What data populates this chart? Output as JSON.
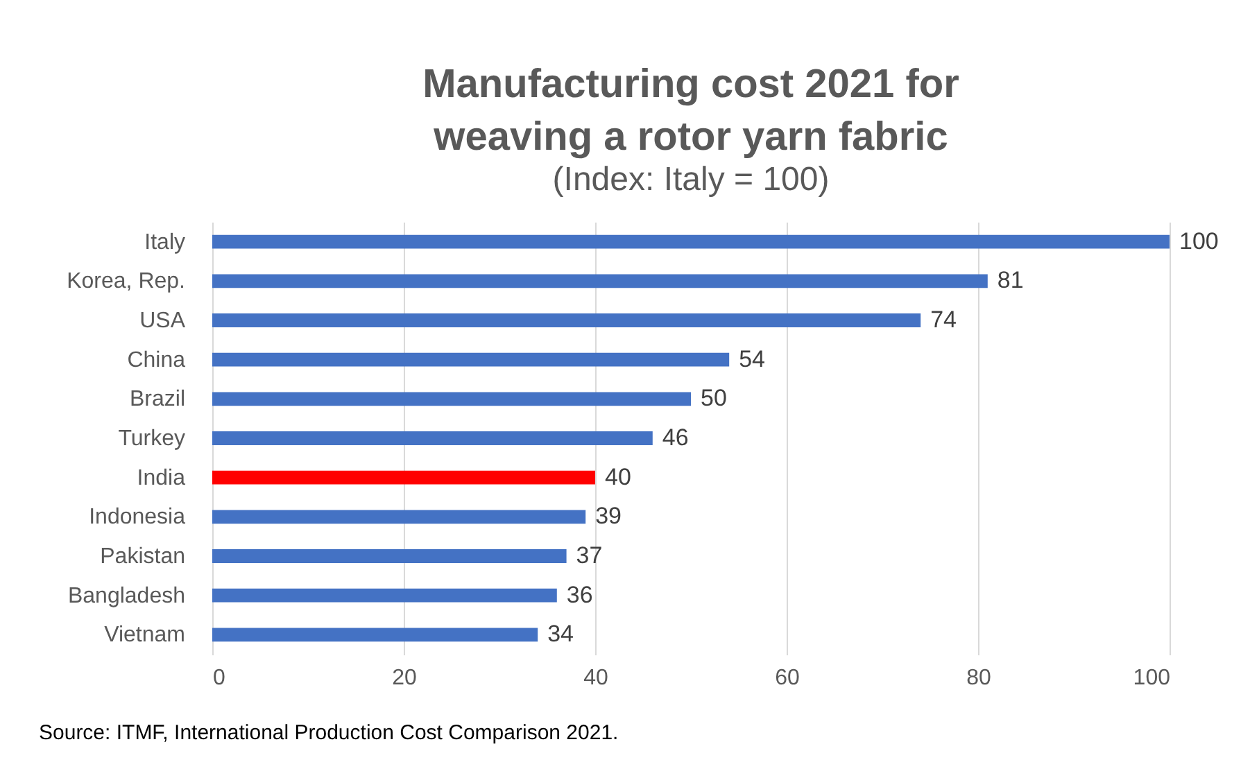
{
  "chart_data": {
    "type": "bar",
    "orientation": "horizontal",
    "title": [
      "Manufacturing cost 2021 for",
      "weaving a rotor yarn fabric"
    ],
    "subtitle": "(Index: Italy = 100)",
    "categories": [
      "Italy",
      "Korea, Rep.",
      "USA",
      "China",
      "Brazil",
      "Turkey",
      "India",
      "Indonesia",
      "Pakistan",
      "Bangladesh",
      "Vietnam"
    ],
    "values": [
      100,
      81,
      74,
      54,
      50,
      46,
      40,
      39,
      37,
      36,
      34
    ],
    "colors": [
      "#4472c4",
      "#4472c4",
      "#4472c4",
      "#4472c4",
      "#4472c4",
      "#4472c4",
      "#ff0000",
      "#4472c4",
      "#4472c4",
      "#4472c4",
      "#4472c4"
    ],
    "xlim": [
      0,
      100
    ],
    "xticks": [
      0,
      20,
      40,
      60,
      80,
      100
    ],
    "grid": "x",
    "data_labels": true,
    "annotations": [
      "Source: ITMF, International Production Cost Comparison 2021."
    ]
  }
}
